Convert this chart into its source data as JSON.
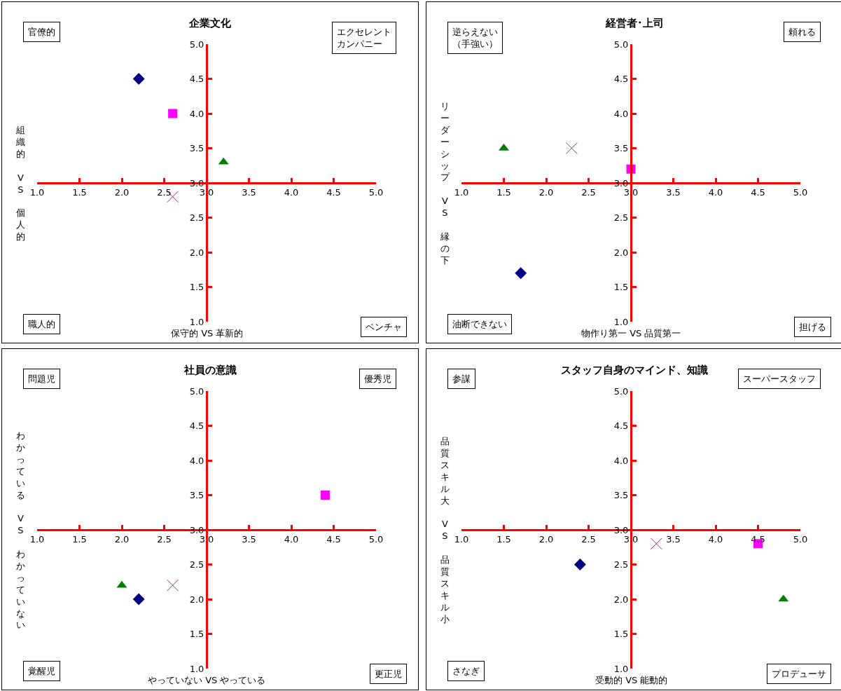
{
  "chart_data": [
    {
      "type": "scatter",
      "title": "企業文化",
      "xlabel": "保守的 VS 革新的",
      "ylabel": "組織的 VS 個人的",
      "annotations": [
        "官僚的",
        "エクセレントカンパニー",
        "職人的",
        "ベンチャ"
      ],
      "xlim": [
        1,
        5
      ],
      "ylim": [
        1,
        5
      ],
      "xticks": [
        {
          "value": 1,
          "label": "1.0"
        },
        {
          "value": 1.5,
          "label": "1.5"
        },
        {
          "value": 2,
          "label": "2.0"
        },
        {
          "value": 2.5,
          "label": "2.5"
        },
        {
          "value": 3,
          "label": "3.0"
        },
        {
          "value": 3.5,
          "label": "3.5"
        },
        {
          "value": 4,
          "label": "4.0"
        },
        {
          "value": 4.5,
          "label": "4.5"
        },
        {
          "value": 5,
          "label": "5.0"
        }
      ],
      "yticks": [
        {
          "value": 1,
          "label": "1.0"
        },
        {
          "value": 1.5,
          "label": "1.5"
        },
        {
          "value": 2,
          "label": "2.0"
        },
        {
          "value": 2.5,
          "label": "2.5"
        },
        {
          "value": 3,
          "label": "3.0"
        },
        {
          "value": 3.5,
          "label": "3.5"
        },
        {
          "value": 4,
          "label": "4.0"
        },
        {
          "value": 4.5,
          "label": "4.5"
        },
        {
          "value": 5,
          "label": "5.0"
        }
      ],
      "series": [
        {
          "color": "#000080",
          "marker": "diamond",
          "x": [
            2.2
          ],
          "values": [
            4.5
          ]
        },
        {
          "color": "#ff00ff",
          "marker": "square",
          "x": [
            2.6
          ],
          "values": [
            4.0
          ]
        },
        {
          "color": "#008000",
          "marker": "triangle",
          "x": [
            3.2
          ],
          "values": [
            3.3
          ]
        },
        {
          "color": "#993366",
          "marker": "cross",
          "x": [
            2.6
          ],
          "values": [
            2.8
          ]
        }
      ]
    },
    {
      "type": "scatter",
      "title": "経営者･上司",
      "xlabel": "物作り第一 VS 品質第一",
      "ylabel": "リーダーシップ VS 縁の下",
      "annotations": [
        "逆らえない（手強い）",
        "頼れる",
        "油断できない",
        "担げる"
      ],
      "xlim": [
        1,
        5
      ],
      "ylim": [
        1,
        5
      ],
      "xticks": [
        {
          "value": 1,
          "label": "1.0"
        },
        {
          "value": 1.5,
          "label": "1.5"
        },
        {
          "value": 2,
          "label": "2.0"
        },
        {
          "value": 2.5,
          "label": "2.5"
        },
        {
          "value": 3,
          "label": "3.0"
        },
        {
          "value": 3.5,
          "label": "3.5"
        },
        {
          "value": 4,
          "label": "4.0"
        },
        {
          "value": 4.5,
          "label": "4.5"
        },
        {
          "value": 5,
          "label": "5.0"
        }
      ],
      "yticks": [
        {
          "value": 1,
          "label": "1.0"
        },
        {
          "value": 1.5,
          "label": "1.5"
        },
        {
          "value": 2,
          "label": "2.0"
        },
        {
          "value": 2.5,
          "label": "2.5"
        },
        {
          "value": 3,
          "label": "3.0"
        },
        {
          "value": 3.5,
          "label": "3.5"
        },
        {
          "value": 4,
          "label": "4.0"
        },
        {
          "value": 4.5,
          "label": "4.5"
        },
        {
          "value": 5,
          "label": "5.0"
        }
      ],
      "series": [
        {
          "color": "#000080",
          "marker": "diamond",
          "x": [
            1.7
          ],
          "values": [
            1.7
          ]
        },
        {
          "color": "#ff00ff",
          "marker": "square",
          "x": [
            3.0
          ],
          "values": [
            3.2
          ]
        },
        {
          "color": "#008000",
          "marker": "triangle",
          "x": [
            1.5
          ],
          "values": [
            3.5
          ]
        },
        {
          "color": "#993366",
          "marker": "cross",
          "x": [
            2.3
          ],
          "values": [
            3.5
          ]
        }
      ]
    },
    {
      "type": "scatter",
      "title": "社員の意識",
      "xlabel": "やっていない VS やっている",
      "ylabel": "わかっている VS わかっていない",
      "annotations": [
        "問題児",
        "優秀児",
        "覚醒児",
        "更正児"
      ],
      "xlim": [
        1,
        5
      ],
      "ylim": [
        1,
        5
      ],
      "xticks": [
        {
          "value": 1,
          "label": "1.0"
        },
        {
          "value": 1.5,
          "label": "1.5"
        },
        {
          "value": 2,
          "label": "2.0"
        },
        {
          "value": 2.5,
          "label": "2.5"
        },
        {
          "value": 3,
          "label": "3.0"
        },
        {
          "value": 3.5,
          "label": "3.5"
        },
        {
          "value": 4,
          "label": "4.0"
        },
        {
          "value": 4.5,
          "label": "4.5"
        },
        {
          "value": 5,
          "label": "5.0"
        }
      ],
      "yticks": [
        {
          "value": 1,
          "label": "1.0"
        },
        {
          "value": 1.5,
          "label": "1.5"
        },
        {
          "value": 2,
          "label": "2.0"
        },
        {
          "value": 2.5,
          "label": "2.5"
        },
        {
          "value": 3,
          "label": "3.0"
        },
        {
          "value": 3.5,
          "label": "3.5"
        },
        {
          "value": 4,
          "label": "4.0"
        },
        {
          "value": 4.5,
          "label": "4.5"
        },
        {
          "value": 5,
          "label": "5.0"
        }
      ],
      "series": [
        {
          "color": "#000080",
          "marker": "diamond",
          "x": [
            2.2
          ],
          "values": [
            2.0
          ]
        },
        {
          "color": "#ff00ff",
          "marker": "square",
          "x": [
            4.4
          ],
          "values": [
            3.5
          ]
        },
        {
          "color": "#008000",
          "marker": "triangle",
          "x": [
            2.0
          ],
          "values": [
            2.2
          ]
        },
        {
          "color": "#993366",
          "marker": "cross",
          "x": [
            2.6
          ],
          "values": [
            2.2
          ]
        }
      ]
    },
    {
      "type": "scatter",
      "title": "スタッフ自身のマインド、知識",
      "xlabel": "受動的 VS 能動的",
      "ylabel": "品質スキル大 VS 品質スキル小",
      "annotations": [
        "参謀",
        "スーパースタッフ",
        "さなぎ",
        "プロデューサ"
      ],
      "xlim": [
        1,
        5
      ],
      "ylim": [
        1,
        5
      ],
      "xticks": [
        {
          "value": 1,
          "label": "1.0"
        },
        {
          "value": 1.5,
          "label": "1.5"
        },
        {
          "value": 2,
          "label": "2.0"
        },
        {
          "value": 2.5,
          "label": "2.5"
        },
        {
          "value": 3,
          "label": "3.0"
        },
        {
          "value": 3.5,
          "label": "3.5"
        },
        {
          "value": 4,
          "label": "4.0"
        },
        {
          "value": 4.5,
          "label": "4.5"
        },
        {
          "value": 5,
          "label": "5.0"
        }
      ],
      "yticks": [
        {
          "value": 1,
          "label": "1.0"
        },
        {
          "value": 1.5,
          "label": "1.5"
        },
        {
          "value": 2,
          "label": "2.0"
        },
        {
          "value": 2.5,
          "label": "2.5"
        },
        {
          "value": 3,
          "label": "3.0"
        },
        {
          "value": 3.5,
          "label": "3.5"
        },
        {
          "value": 4,
          "label": "4.0"
        },
        {
          "value": 4.5,
          "label": "4.5"
        },
        {
          "value": 5,
          "label": "5.0"
        }
      ],
      "series": [
        {
          "color": "#000080",
          "marker": "diamond",
          "x": [
            2.4
          ],
          "values": [
            2.5
          ]
        },
        {
          "color": "#ff00ff",
          "marker": "square",
          "x": [
            4.5
          ],
          "values": [
            2.8
          ]
        },
        {
          "color": "#008000",
          "marker": "triangle",
          "x": [
            4.8
          ],
          "values": [
            2.0
          ]
        },
        {
          "color": "#993366",
          "marker": "cross",
          "x": [
            3.3
          ],
          "values": [
            2.8
          ]
        }
      ]
    }
  ]
}
